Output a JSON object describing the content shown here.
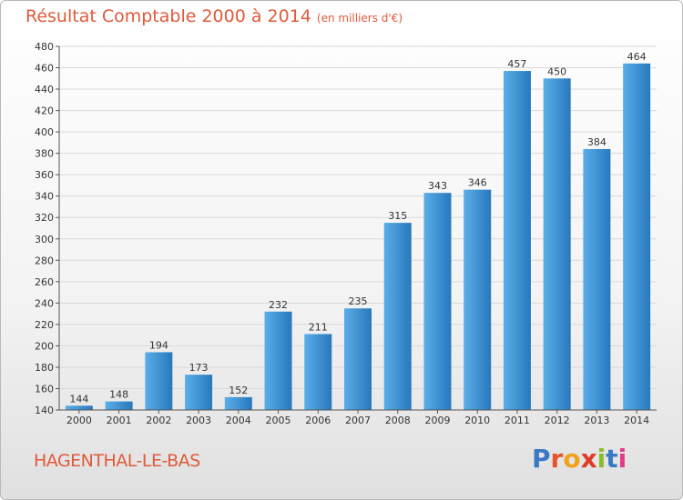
{
  "header": {
    "title": "Résultat Comptable 2000 à 2014",
    "unit": "(en milliers d'€)"
  },
  "footer": {
    "commune": "HAGENTHAL-LE-BAS"
  },
  "logo": {
    "text": "Proxiti",
    "letter_colors": [
      "#3a79c6",
      "#e8542a",
      "#f0a21c",
      "#e03b2a",
      "#8bbd2b",
      "#3a79c6",
      "#e03b8a"
    ]
  },
  "colors": {
    "bar_light": "#5aaee8",
    "bar_dark": "#2878bd",
    "title": "#e05a3a",
    "grid": "#d9d9d9",
    "axis": "#555555"
  },
  "chart_data": {
    "type": "bar",
    "title": "Résultat Comptable 2000 à 2014",
    "subtitle": "(en milliers d'€)",
    "xlabel": "",
    "ylabel": "",
    "categories": [
      "2000",
      "2001",
      "2002",
      "2003",
      "2004",
      "2005",
      "2006",
      "2007",
      "2008",
      "2009",
      "2010",
      "2011",
      "2012",
      "2013",
      "2014"
    ],
    "values": [
      144,
      148,
      194,
      173,
      152,
      232,
      211,
      235,
      315,
      343,
      346,
      457,
      450,
      384,
      464
    ],
    "ylim": [
      140,
      480
    ],
    "ytick_step": 20,
    "grid": true
  }
}
